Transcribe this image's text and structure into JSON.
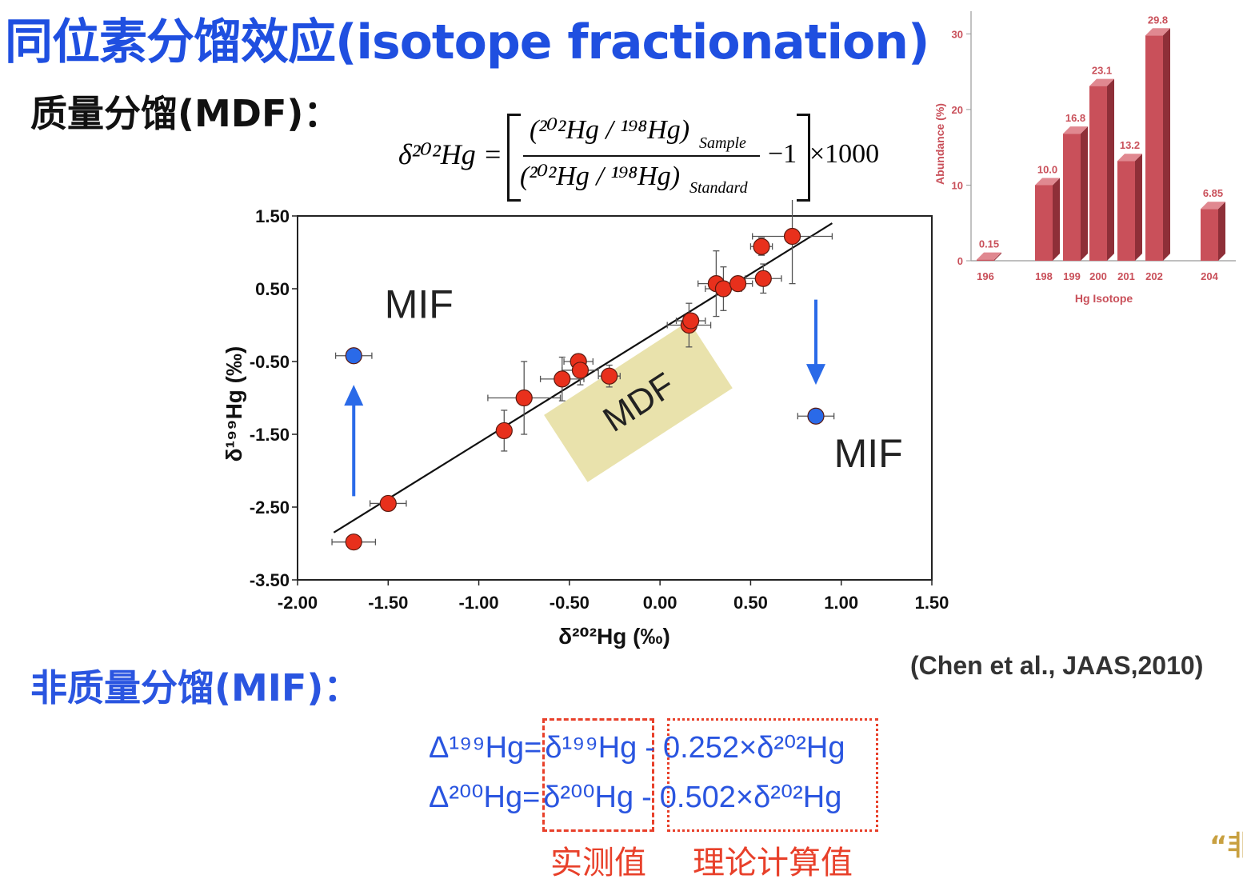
{
  "title": "同位素分馏效应(isotope fractionation)",
  "mdf_heading": "质量分馏(MDF)：",
  "mif_heading": "非质量分馏(MIF)：",
  "citation": "(Chen et al., JAAS,2010)",
  "formula": {
    "lhs": "δ²⁰²Hg =",
    "numerator": "(²⁰²Hg / ¹⁹⁸Hg)",
    "numerator_sub": "Sample",
    "denominator": "(²⁰²Hg / ¹⁹⁸Hg)",
    "denominator_sub": "Standard",
    "minus": "−1",
    "times": "×1000"
  },
  "mif_equations": {
    "line1": {
      "lhs": "Δ¹⁹⁹Hg=",
      "measured": "δ¹⁹⁹Hg",
      "op": "-",
      "theory": "0.252×δ²⁰²Hg"
    },
    "line2": {
      "lhs": "Δ²⁰⁰Hg=",
      "measured": "δ²⁰⁰Hg",
      "op": "-",
      "theory": "0.502×δ²⁰²Hg"
    },
    "label_measured": "实测值",
    "label_theory": "理论计算值"
  },
  "corner_mark": "“非",
  "colors": {
    "title": "#1f4fe0",
    "mdf_point": "#e8301c",
    "mif_point": "#2a6ae8",
    "arrow": "#2a6ae8",
    "mdf_band": "#e8e0a8",
    "bar": "#c9505a",
    "annot": "#e8402a"
  },
  "chart_data": [
    {
      "type": "scatter",
      "xlabel": "δ²⁰²Hg (‰)",
      "ylabel": "δ¹⁹⁹Hg (‰)",
      "xlim": [
        -2.0,
        1.5
      ],
      "ylim": [
        -3.5,
        1.5
      ],
      "xticks": [
        "-2.00",
        "-1.50",
        "-1.00",
        "-0.50",
        "0.00",
        "0.50",
        "1.00",
        "1.50"
      ],
      "yticks": [
        "1.50",
        "0.50",
        "-0.50",
        "-1.50",
        "-2.50",
        "-3.50"
      ],
      "fit_line": {
        "x": [
          -1.8,
          0.95
        ],
        "y": [
          -2.85,
          1.4
        ]
      },
      "series": [
        {
          "points": [
            {
              "x": -1.69,
              "y": -2.98,
              "ex": 0.12,
              "ey": 0.08
            },
            {
              "x": -1.5,
              "y": -2.45,
              "ex": 0.1,
              "ey": 0.06
            },
            {
              "x": -0.86,
              "y": -1.45,
              "ex": 0.04,
              "ey": 0.28
            },
            {
              "x": -0.75,
              "y": -1.0,
              "ex": 0.2,
              "ey": 0.5
            },
            {
              "x": -0.54,
              "y": -0.74,
              "ex": 0.12,
              "ey": 0.3
            },
            {
              "x": -0.45,
              "y": -0.5,
              "ex": 0.08,
              "ey": 0.1
            },
            {
              "x": -0.44,
              "y": -0.62,
              "ex": 0.1,
              "ey": 0.2
            },
            {
              "x": -0.28,
              "y": -0.7,
              "ex": 0.06,
              "ey": 0.15
            },
            {
              "x": 0.16,
              "y": 0.0,
              "ex": 0.12,
              "ey": 0.3
            },
            {
              "x": 0.17,
              "y": 0.06,
              "ex": 0.08,
              "ey": 0.08
            },
            {
              "x": 0.31,
              "y": 0.57,
              "ex": 0.1,
              "ey": 0.45
            },
            {
              "x": 0.35,
              "y": 0.5,
              "ex": 0.1,
              "ey": 0.3
            },
            {
              "x": 0.43,
              "y": 0.57,
              "ex": 0.08,
              "ey": 0.08
            },
            {
              "x": 0.56,
              "y": 1.08,
              "ex": 0.06,
              "ey": 0.12
            },
            {
              "x": 0.57,
              "y": 0.64,
              "ex": 0.1,
              "ey": 0.2
            },
            {
              "x": 0.73,
              "y": 1.22,
              "ex": 0.22,
              "ey": 0.65
            }
          ]
        },
        {
          "points": [
            {
              "x": -1.69,
              "y": -0.42,
              "ex": 0.1,
              "ey": 0.08
            },
            {
              "x": 0.86,
              "y": -1.25,
              "ex": 0.1,
              "ey": 0.08
            }
          ]
        }
      ],
      "annotations": [
        {
          "text": "MIF",
          "x": -1.52,
          "y": 0.1
        },
        {
          "text": "MIF",
          "x": 0.96,
          "y": -1.95
        },
        {
          "text": "MDF",
          "x": -0.12,
          "y": -1.05
        }
      ],
      "arrows": [
        {
          "x": -1.69,
          "y_from": -2.35,
          "y_to": -0.82
        },
        {
          "x": 0.86,
          "y_from": 0.35,
          "y_to": -0.82
        }
      ]
    },
    {
      "type": "bar",
      "categories": [
        "196",
        "198",
        "199",
        "200",
        "201",
        "202",
        "204"
      ],
      "values": [
        0.15,
        10.0,
        16.8,
        23.1,
        13.2,
        29.8,
        6.85
      ],
      "value_labels": [
        "0.15",
        "10.0",
        "16.8",
        "23.1",
        "13.2",
        "29.8",
        "6.85"
      ],
      "xlabel": "Hg Isotope",
      "ylabel": "Abundance (%)",
      "ylim": [
        0,
        33
      ],
      "yticks": [
        "0",
        "10",
        "20",
        "30"
      ]
    }
  ]
}
